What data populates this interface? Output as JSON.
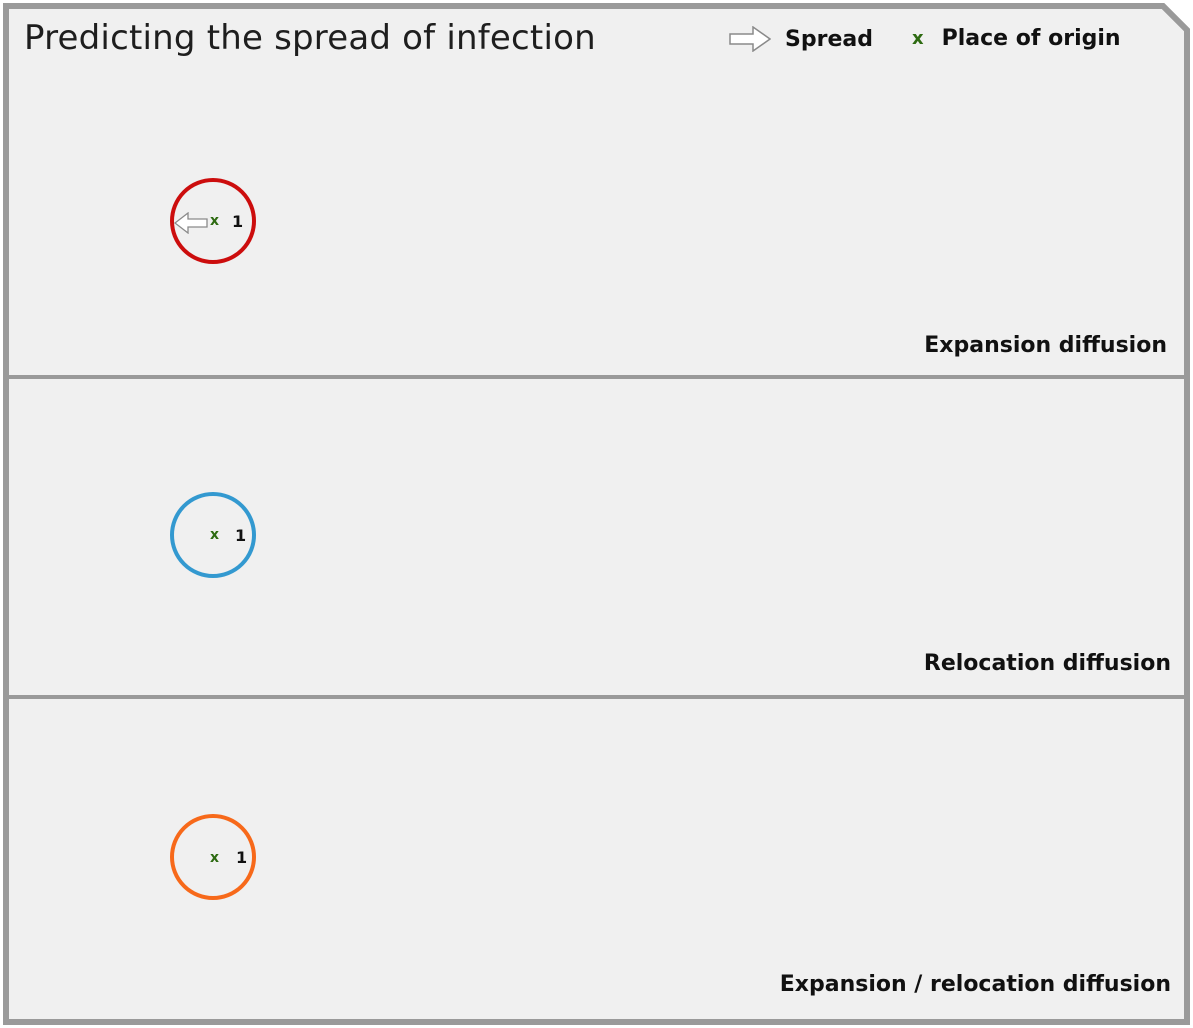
{
  "title": "Predicting the spread of infection",
  "legend": {
    "spread_label": "Spread",
    "origin_symbol": "x",
    "origin_label": "Place of origin",
    "spread_icon": "hollow-arrow-right-icon"
  },
  "panels": [
    {
      "label": "Expansion diffusion",
      "circle_color": "#cc0d0d",
      "origin_symbol": "x",
      "origin_number": "1",
      "has_spread_arrow": true,
      "spread_arrow_icon": "hollow-arrow-left-icon"
    },
    {
      "label": "Relocation diffusion",
      "circle_color": "#3399d0",
      "origin_symbol": "x",
      "origin_number": "1",
      "has_spread_arrow": false
    },
    {
      "label": "Expansion / relocation diffusion",
      "circle_color": "#f7691a",
      "origin_symbol": "x",
      "origin_number": "1",
      "has_spread_arrow": false
    }
  ],
  "colors": {
    "panel_background": "#f0f0f0",
    "border": "#9a9a9a",
    "origin_marker": "#2e6b12"
  }
}
